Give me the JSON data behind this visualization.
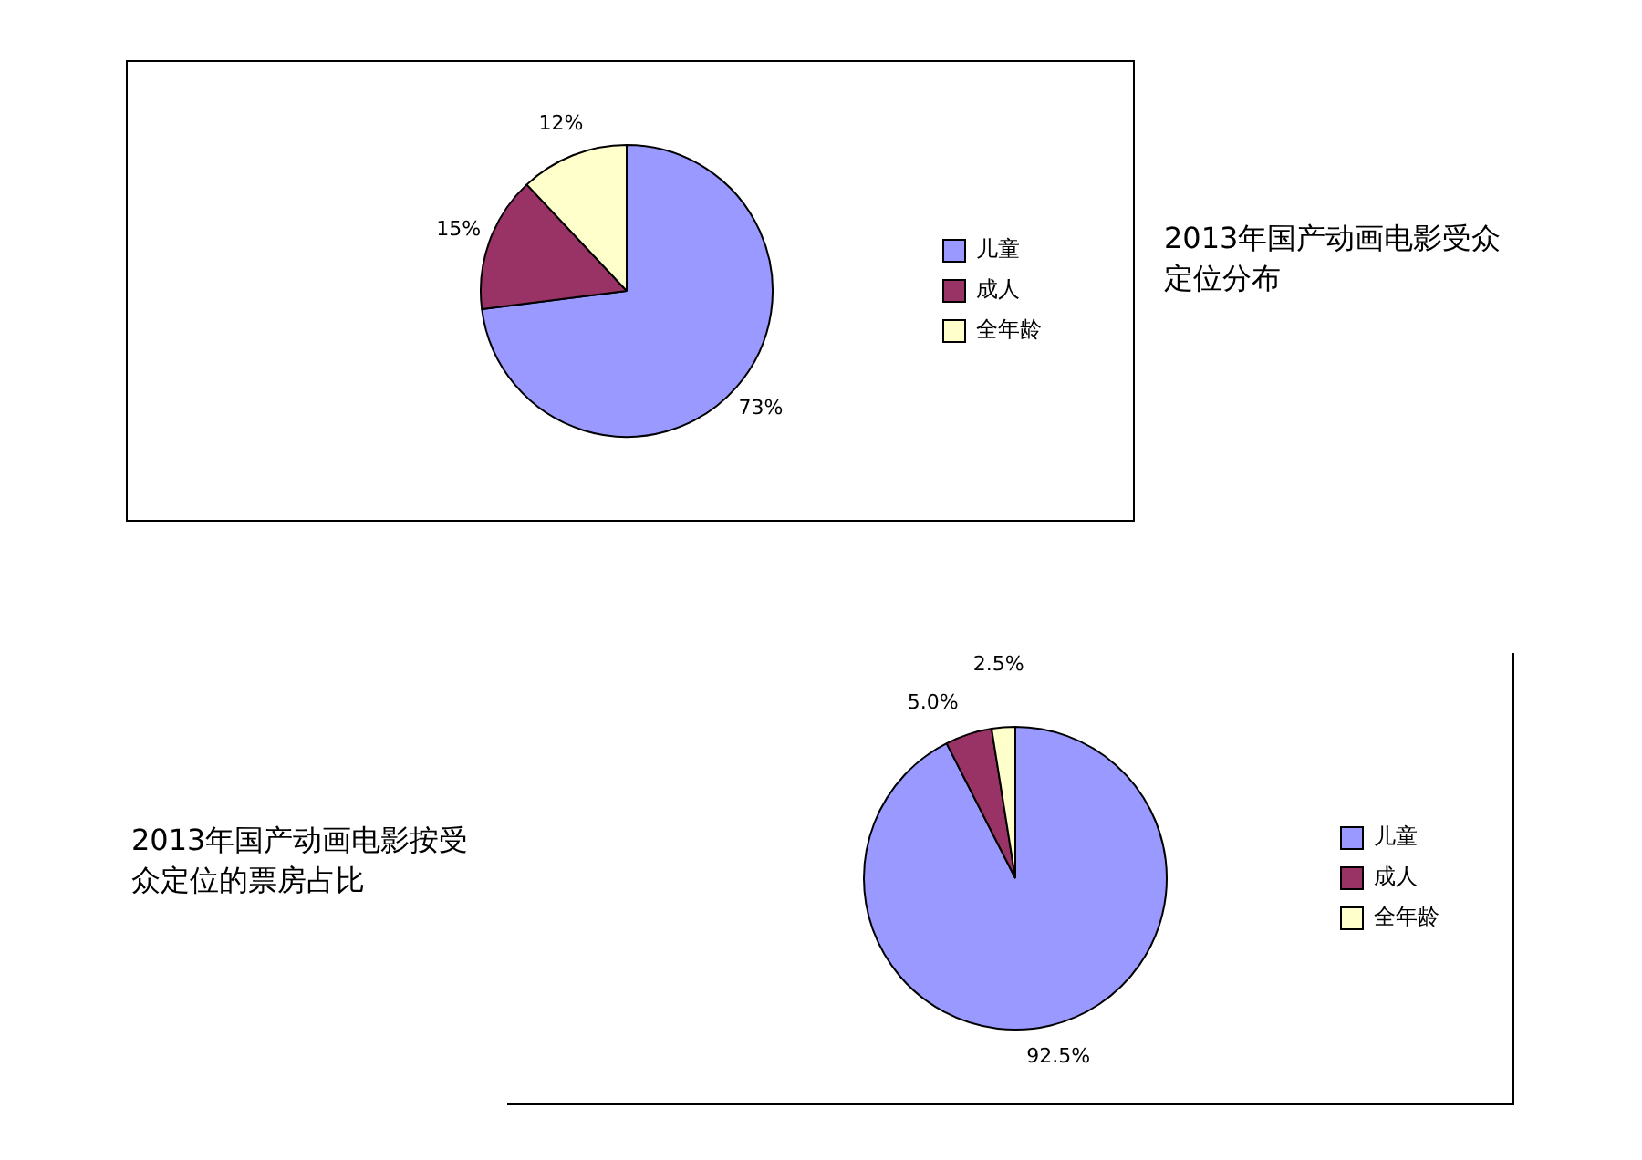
{
  "chart_data": [
    {
      "type": "pie",
      "title": "2013年国产动画电影受众定位分布",
      "categories": [
        "儿童",
        "成人",
        "全年龄"
      ],
      "values": [
        73,
        15,
        12
      ],
      "colors": [
        "#9999ff",
        "#993366",
        "#ffffcc"
      ],
      "value_labels": [
        "73%",
        "15%",
        "12%"
      ],
      "legend": "right"
    },
    {
      "type": "pie",
      "title": "2013年国产动画电影按受众定位的票房占比",
      "categories": [
        "儿童",
        "成人",
        "全年龄"
      ],
      "values": [
        92.5,
        5.0,
        2.5
      ],
      "colors": [
        "#9999ff",
        "#993366",
        "#ffffcc"
      ],
      "value_labels": [
        "92.5%",
        "5.0%",
        "2.5%"
      ],
      "legend": "right"
    }
  ]
}
